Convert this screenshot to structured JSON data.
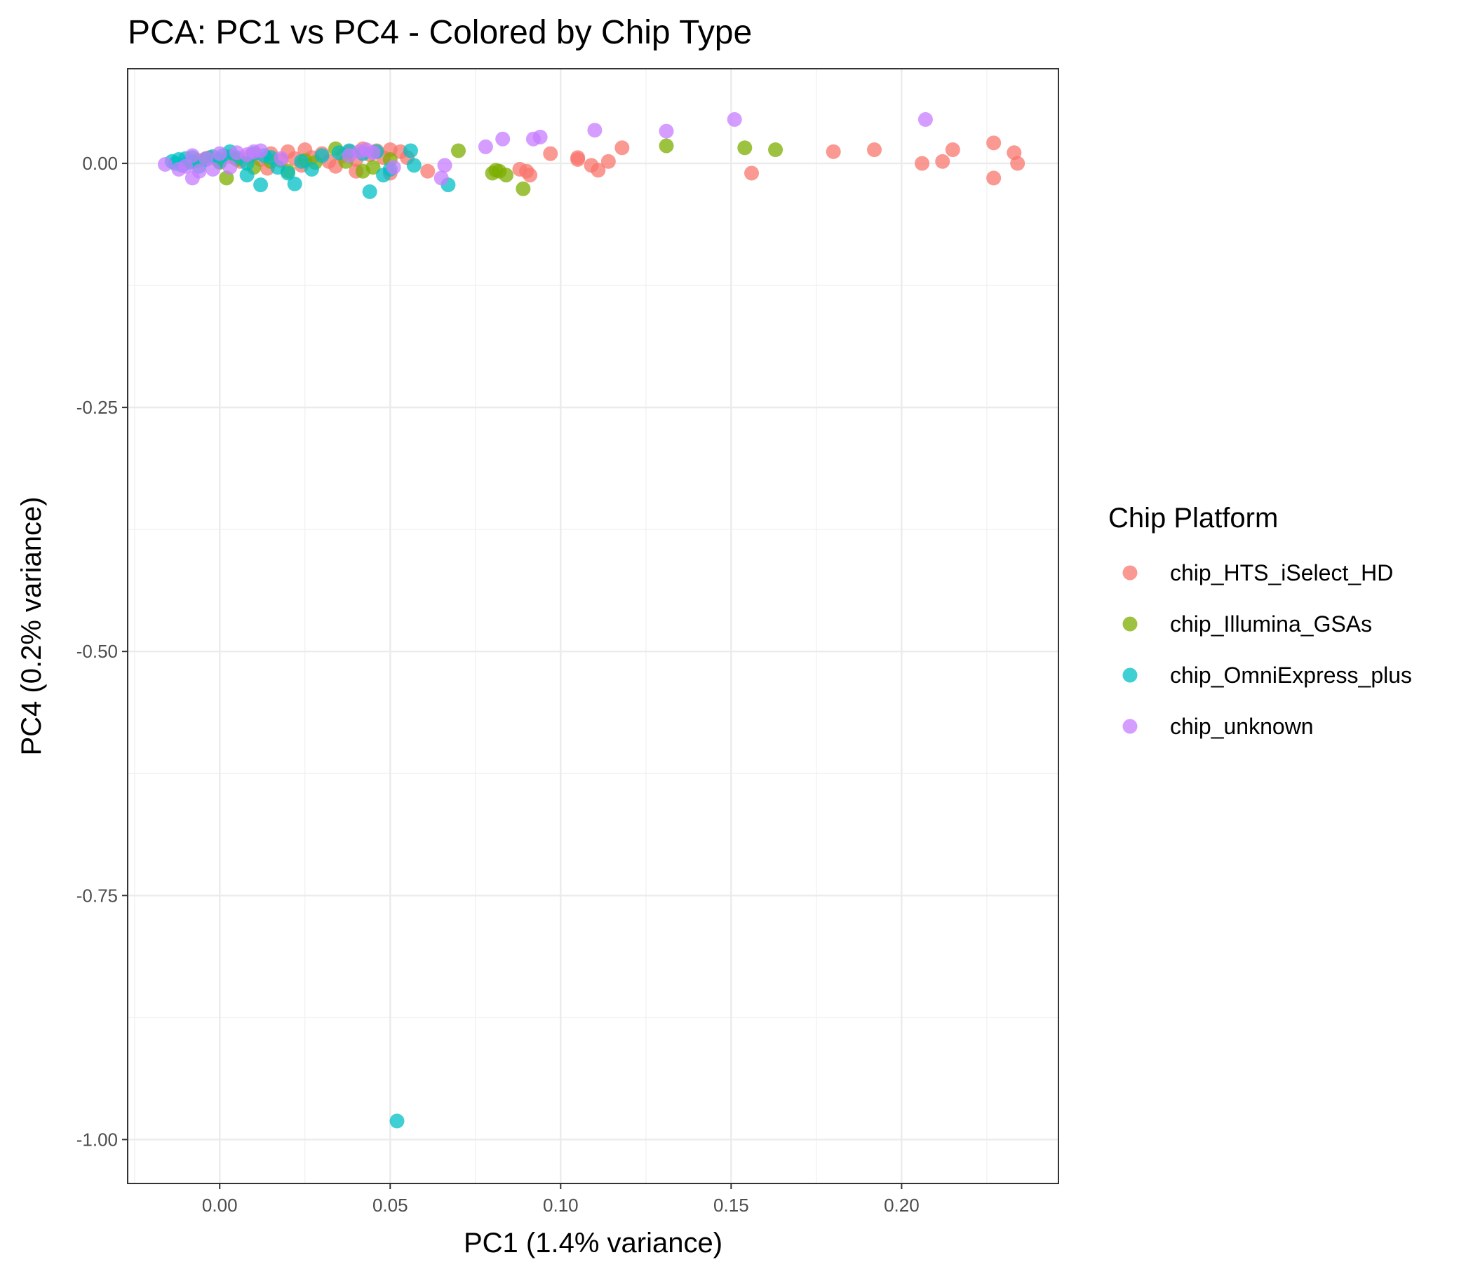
{
  "chart_data": {
    "type": "scatter",
    "title": "PCA: PC1 vs PC4 - Colored by Chip Type",
    "xlabel": "PC1 (1.4% variance)",
    "ylabel": "PC4 (0.2% variance)",
    "xlim": [
      -0.027,
      0.246
    ],
    "ylim": [
      -1.045,
      0.097
    ],
    "x_ticks": [
      {
        "value": 0.0,
        "label": "0.00"
      },
      {
        "value": 0.05,
        "label": "0.05"
      },
      {
        "value": 0.1,
        "label": "0.10"
      },
      {
        "value": 0.15,
        "label": "0.15"
      },
      {
        "value": 0.2,
        "label": "0.20"
      }
    ],
    "y_ticks": [
      {
        "value": 0.0,
        "label": "0.00"
      },
      {
        "value": -0.25,
        "label": "-0.25"
      },
      {
        "value": -0.5,
        "label": "-0.50"
      },
      {
        "value": -0.75,
        "label": "-0.75"
      },
      {
        "value": -1.0,
        "label": "-1.00"
      }
    ],
    "grid": true,
    "legend": {
      "title": "Chip Platform",
      "position": "right"
    },
    "series": [
      {
        "name": "chip_HTS_iSelect_HD",
        "color": "#F8766D",
        "points": [
          [
            -0.006,
            0.003
          ],
          [
            -0.003,
            0.006
          ],
          [
            0.0,
            0.004
          ],
          [
            0.003,
            0.007
          ],
          [
            0.006,
            0.002
          ],
          [
            0.009,
            0.008
          ],
          [
            0.012,
            0.004
          ],
          [
            0.015,
            0.01
          ],
          [
            0.018,
            0.003
          ],
          [
            0.02,
            0.012
          ],
          [
            0.022,
            0.005
          ],
          [
            0.025,
            0.014
          ],
          [
            0.027,
            0.006
          ],
          [
            0.03,
            0.01
          ],
          [
            0.032,
            0.002
          ],
          [
            0.034,
            -0.003
          ],
          [
            0.036,
            0.008
          ],
          [
            0.038,
            0.012
          ],
          [
            0.04,
            0.004
          ],
          [
            0.042,
            0.015
          ],
          [
            0.044,
            0.009
          ],
          [
            0.046,
            0.013
          ],
          [
            0.048,
            0.006
          ],
          [
            0.05,
            0.014
          ],
          [
            0.053,
            0.012
          ],
          [
            0.055,
            0.006
          ],
          [
            0.04,
            -0.008
          ],
          [
            0.05,
            -0.01
          ],
          [
            0.061,
            -0.008
          ],
          [
            0.088,
            -0.006
          ],
          [
            0.09,
            -0.008
          ],
          [
            0.091,
            -0.012
          ],
          [
            0.097,
            0.01
          ],
          [
            0.105,
            0.006
          ],
          [
            0.105,
            0.004
          ],
          [
            0.109,
            -0.002
          ],
          [
            0.111,
            -0.007
          ],
          [
            0.114,
            0.002
          ],
          [
            0.118,
            0.016
          ],
          [
            0.156,
            -0.01
          ],
          [
            0.18,
            0.012
          ],
          [
            0.192,
            0.014
          ],
          [
            0.206,
            0.0
          ],
          [
            0.212,
            0.002
          ],
          [
            0.215,
            0.014
          ],
          [
            0.227,
            0.021
          ],
          [
            0.227,
            -0.015
          ],
          [
            0.233,
            0.011
          ],
          [
            0.234,
            0.0
          ],
          [
            0.014,
            -0.005
          ],
          [
            0.024,
            -0.002
          ]
        ]
      },
      {
        "name": "chip_Illumina_GSAs",
        "color": "#7CAE00",
        "points": [
          [
            -0.008,
            0.002
          ],
          [
            -0.004,
            0.005
          ],
          [
            0.0,
            0.001
          ],
          [
            0.002,
            -0.015
          ],
          [
            0.005,
            0.004
          ],
          [
            0.01,
            -0.004
          ],
          [
            0.015,
            0.002
          ],
          [
            0.02,
            -0.008
          ],
          [
            0.025,
            0.003
          ],
          [
            0.028,
            0.001
          ],
          [
            0.034,
            0.015
          ],
          [
            0.037,
            0.002
          ],
          [
            0.042,
            -0.008
          ],
          [
            0.045,
            -0.004
          ],
          [
            0.05,
            0.004
          ],
          [
            0.07,
            0.013
          ],
          [
            0.08,
            -0.01
          ],
          [
            0.081,
            -0.007
          ],
          [
            0.082,
            -0.008
          ],
          [
            0.084,
            -0.012
          ],
          [
            0.089,
            -0.026
          ],
          [
            0.131,
            0.018
          ],
          [
            0.154,
            0.016
          ],
          [
            0.163,
            0.014
          ]
        ]
      },
      {
        "name": "chip_OmniExpress_plus",
        "color": "#00BFC4",
        "points": [
          [
            -0.014,
            0.002
          ],
          [
            -0.013,
            0.0
          ],
          [
            -0.012,
            0.004
          ],
          [
            -0.011,
            -0.002
          ],
          [
            -0.01,
            0.005
          ],
          [
            -0.009,
            0.001
          ],
          [
            -0.008,
            0.006
          ],
          [
            -0.006,
            -0.003
          ],
          [
            -0.004,
            0.004
          ],
          [
            -0.002,
            0.007
          ],
          [
            0.0,
            0.002
          ],
          [
            0.001,
            0.008
          ],
          [
            0.003,
            0.012
          ],
          [
            0.005,
            0.006
          ],
          [
            0.008,
            -0.012
          ],
          [
            0.008,
            0.0
          ],
          [
            0.01,
            0.01
          ],
          [
            0.012,
            -0.022
          ],
          [
            0.013,
            0.008
          ],
          [
            0.015,
            0.006
          ],
          [
            0.017,
            -0.004
          ],
          [
            0.02,
            -0.01
          ],
          [
            0.022,
            -0.021
          ],
          [
            0.024,
            0.002
          ],
          [
            0.027,
            -0.006
          ],
          [
            0.03,
            0.008
          ],
          [
            0.035,
            0.011
          ],
          [
            0.038,
            0.013
          ],
          [
            0.042,
            0.01
          ],
          [
            0.044,
            -0.029
          ],
          [
            0.046,
            0.012
          ],
          [
            0.048,
            -0.012
          ],
          [
            0.05,
            -0.006
          ],
          [
            0.056,
            0.013
          ],
          [
            0.057,
            -0.002
          ],
          [
            0.067,
            -0.022
          ],
          [
            0.052,
            -0.981
          ]
        ]
      },
      {
        "name": "chip_unknown",
        "color": "#C77CFF",
        "points": [
          [
            -0.016,
            -0.001
          ],
          [
            -0.012,
            -0.006
          ],
          [
            -0.01,
            -0.003
          ],
          [
            -0.008,
            -0.015
          ],
          [
            -0.008,
            0.008
          ],
          [
            -0.006,
            -0.008
          ],
          [
            -0.004,
            0.005
          ],
          [
            -0.002,
            -0.006
          ],
          [
            0.0,
            0.01
          ],
          [
            0.003,
            -0.004
          ],
          [
            0.005,
            0.011
          ],
          [
            0.008,
            0.009
          ],
          [
            0.01,
            0.012
          ],
          [
            0.012,
            0.013
          ],
          [
            0.018,
            0.005
          ],
          [
            0.038,
            0.008
          ],
          [
            0.041,
            0.012
          ],
          [
            0.043,
            0.014
          ],
          [
            0.045,
            0.011
          ],
          [
            0.051,
            -0.004
          ],
          [
            0.065,
            -0.015
          ],
          [
            0.066,
            -0.002
          ],
          [
            0.078,
            0.017
          ],
          [
            0.083,
            0.025
          ],
          [
            0.092,
            0.025
          ],
          [
            0.094,
            0.027
          ],
          [
            0.11,
            0.034
          ],
          [
            0.131,
            0.033
          ],
          [
            0.151,
            0.045
          ],
          [
            0.207,
            0.045
          ]
        ]
      }
    ]
  }
}
